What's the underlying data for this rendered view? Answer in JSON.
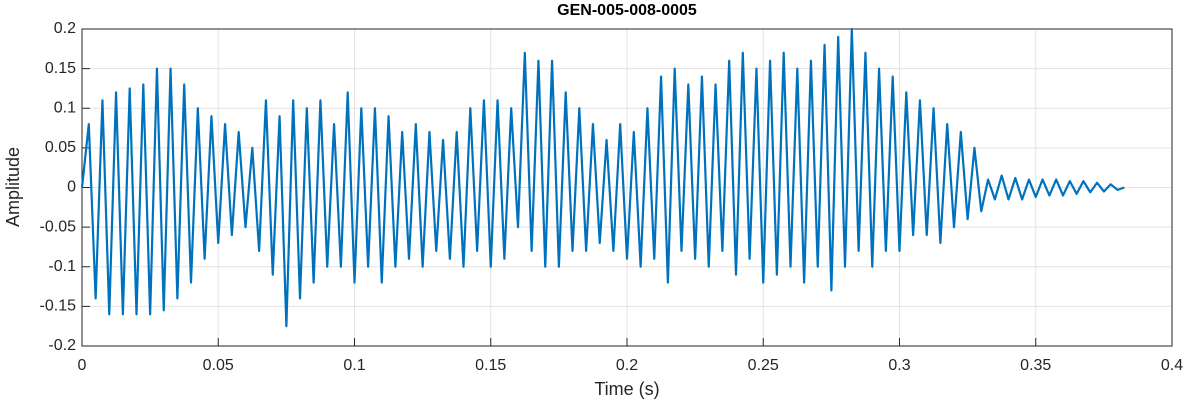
{
  "chart_data": {
    "type": "line",
    "title": "GEN-005-008-0005",
    "xlabel": "Time (s)",
    "ylabel": "Amplitude",
    "xlim": [
      0,
      0.4
    ],
    "ylim": [
      -0.2,
      0.2
    ],
    "xticks": [
      0,
      0.05,
      0.1,
      0.15,
      0.2,
      0.25,
      0.3,
      0.35,
      0.4
    ],
    "yticks": [
      -0.2,
      -0.15,
      -0.1,
      -0.05,
      0,
      0.05,
      0.1,
      0.15,
      0.2
    ],
    "grid": true,
    "x": [
      0,
      0.0025,
      0.005,
      0.0075,
      0.01,
      0.0125,
      0.015,
      0.0175,
      0.02,
      0.0225,
      0.025,
      0.0275,
      0.03,
      0.0325,
      0.035,
      0.0375,
      0.04,
      0.0425,
      0.045,
      0.0475,
      0.05,
      0.0525,
      0.055,
      0.0575,
      0.06,
      0.0625,
      0.065,
      0.0675,
      0.07,
      0.0725,
      0.075,
      0.0775,
      0.08,
      0.0825,
      0.085,
      0.0875,
      0.09,
      0.0925,
      0.095,
      0.0975,
      0.1,
      0.1025,
      0.105,
      0.1075,
      0.11,
      0.1125,
      0.115,
      0.1175,
      0.12,
      0.1225,
      0.125,
      0.1275,
      0.13,
      0.1325,
      0.135,
      0.1375,
      0.14,
      0.1425,
      0.145,
      0.1475,
      0.15,
      0.1525,
      0.155,
      0.1575,
      0.16,
      0.1625,
      0.165,
      0.1675,
      0.17,
      0.1725,
      0.175,
      0.1775,
      0.18,
      0.1825,
      0.185,
      0.1875,
      0.19,
      0.1925,
      0.195,
      0.1975,
      0.2,
      0.2025,
      0.205,
      0.2075,
      0.21,
      0.2125,
      0.215,
      0.2175,
      0.22,
      0.2225,
      0.225,
      0.2275,
      0.23,
      0.2325,
      0.235,
      0.2375,
      0.24,
      0.2425,
      0.245,
      0.2475,
      0.25,
      0.2525,
      0.255,
      0.2575,
      0.26,
      0.2625,
      0.265,
      0.2675,
      0.27,
      0.2725,
      0.275,
      0.2775,
      0.28,
      0.2825,
      0.285,
      0.2875,
      0.29,
      0.2925,
      0.295,
      0.2975,
      0.3,
      0.3025,
      0.305,
      0.3075,
      0.31,
      0.3125,
      0.315,
      0.3175,
      0.32,
      0.3225,
      0.325,
      0.3275,
      0.33,
      0.3325,
      0.335,
      0.3375,
      0.34,
      0.3425,
      0.345,
      0.3475,
      0.35,
      0.3525,
      0.355,
      0.3575,
      0.36,
      0.3625,
      0.365,
      0.3675,
      0.37,
      0.3725,
      0.375,
      0.3775,
      0.38,
      0.3825
    ],
    "series": [
      {
        "color": "#0072BD",
        "values": [
          0,
          0.08,
          -0.14,
          0.11,
          -0.16,
          0.12,
          -0.16,
          0.125,
          -0.16,
          0.13,
          -0.16,
          0.15,
          -0.155,
          0.15,
          -0.14,
          0.13,
          -0.12,
          0.1,
          -0.09,
          0.09,
          -0.07,
          0.08,
          -0.06,
          0.07,
          -0.05,
          0.05,
          -0.08,
          0.11,
          -0.11,
          0.09,
          -0.175,
          0.11,
          -0.14,
          0.1,
          -0.12,
          0.11,
          -0.1,
          0.08,
          -0.1,
          0.12,
          -0.12,
          0.1,
          -0.1,
          0.1,
          -0.12,
          0.09,
          -0.1,
          0.07,
          -0.09,
          0.08,
          -0.1,
          0.07,
          -0.08,
          0.06,
          -0.09,
          0.07,
          -0.1,
          0.1,
          -0.08,
          0.11,
          -0.1,
          0.11,
          -0.09,
          0.1,
          -0.05,
          0.17,
          -0.08,
          0.16,
          -0.1,
          0.16,
          -0.1,
          0.12,
          -0.08,
          0.1,
          -0.08,
          0.08,
          -0.07,
          0.06,
          -0.08,
          0.08,
          -0.09,
          0.07,
          -0.1,
          0.1,
          -0.09,
          0.14,
          -0.12,
          0.15,
          -0.08,
          0.13,
          -0.09,
          0.14,
          -0.1,
          0.13,
          -0.08,
          0.16,
          -0.11,
          0.17,
          -0.09,
          0.15,
          -0.12,
          0.16,
          -0.11,
          0.17,
          -0.1,
          0.15,
          -0.12,
          0.16,
          -0.1,
          0.18,
          -0.13,
          0.19,
          -0.1,
          0.2,
          -0.08,
          0.17,
          -0.1,
          0.15,
          -0.08,
          0.14,
          -0.08,
          0.12,
          -0.06,
          0.11,
          -0.06,
          0.1,
          -0.07,
          0.08,
          -0.05,
          0.07,
          -0.04,
          0.05,
          -0.03,
          0.01,
          -0.015,
          0.015,
          -0.015,
          0.012,
          -0.015,
          0.01,
          -0.012,
          0.01,
          -0.01,
          0.01,
          -0.01,
          0.008,
          -0.008,
          0.008,
          -0.006,
          0.006,
          -0.005,
          0.004,
          -0.003,
          0
        ]
      }
    ]
  }
}
